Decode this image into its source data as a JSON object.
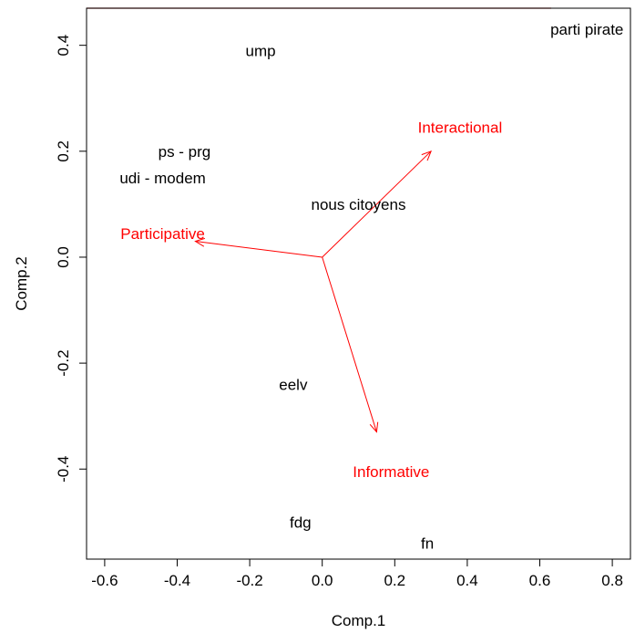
{
  "chart_data": {
    "type": "scatter",
    "title": "",
    "xlabel": "Comp.1",
    "ylabel": "Comp.2",
    "xlim": [
      -0.65,
      0.85
    ],
    "ylim": [
      -0.57,
      0.47
    ],
    "x_ticks": [
      -0.6,
      -0.4,
      -0.2,
      0.0,
      0.2,
      0.4,
      0.6,
      0.8
    ],
    "x_tick_labels": [
      "-0.6",
      "-0.4",
      "-0.2",
      "0.0",
      "0.2",
      "0.4",
      "0.6",
      "0.8"
    ],
    "y_ticks": [
      -0.4,
      -0.2,
      0.0,
      0.2,
      0.4
    ],
    "y_tick_labels": [
      "-0.4",
      "-0.2",
      "0.0",
      "0.2",
      "0.4"
    ],
    "points": [
      {
        "label": "ump",
        "x": -0.17,
        "y": 0.39
      },
      {
        "label": "parti pirate",
        "x": 0.73,
        "y": 0.43
      },
      {
        "label": "ps - prg",
        "x": -0.38,
        "y": 0.2
      },
      {
        "label": "udi - modem",
        "x": -0.44,
        "y": 0.15
      },
      {
        "label": "nous citoyens",
        "x": 0.1,
        "y": 0.1
      },
      {
        "label": "eelv",
        "x": -0.08,
        "y": -0.24
      },
      {
        "label": "fdg",
        "x": -0.06,
        "y": -0.5
      },
      {
        "label": "fn",
        "x": 0.29,
        "y": -0.54
      }
    ],
    "arrows": [
      {
        "label": "Participative",
        "x": -0.35,
        "y": 0.03,
        "label_x": -0.44,
        "label_y": 0.045
      },
      {
        "label": "Interactional",
        "x": 0.3,
        "y": 0.2,
        "label_x": 0.38,
        "label_y": 0.245
      },
      {
        "label": "Informative",
        "x": 0.15,
        "y": -0.33,
        "label_x": 0.19,
        "label_y": -0.405
      }
    ],
    "arrow_color": "#ff0000",
    "point_color": "#000000",
    "grid": false
  }
}
